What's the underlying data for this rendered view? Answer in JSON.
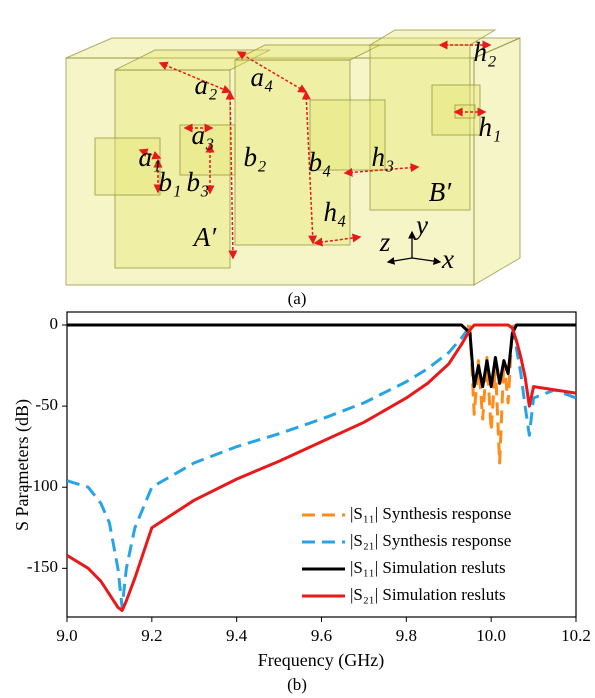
{
  "figure": {
    "caption_a": "(a)",
    "caption_b": "(b)",
    "diagram": {
      "labels": [
        "a₁",
        "a₂",
        "a₃",
        "a₄",
        "b₁",
        "b₂",
        "b₃",
        "b₄",
        "h₁",
        "h₂",
        "h₃",
        "h₄",
        "A′",
        "B′",
        "z",
        "y",
        "x"
      ]
    }
  },
  "chart_data": {
    "type": "line",
    "x_label": "Frequency (GHz)",
    "y_label": "S Parameters (dB)",
    "x": [
      9.0,
      9.05,
      9.08,
      9.1,
      9.12,
      9.13,
      9.14,
      9.16,
      9.2,
      9.3,
      9.4,
      9.5,
      9.6,
      9.7,
      9.8,
      9.85,
      9.9,
      9.93,
      9.95,
      9.96,
      9.97,
      9.98,
      9.99,
      10.0,
      10.01,
      10.02,
      10.03,
      10.04,
      10.05,
      10.06,
      10.07,
      10.08,
      10.09,
      10.1,
      10.15,
      10.2
    ],
    "series": [
      {
        "name": "|S₁₁| Synthesis response",
        "color": "#ff8c1a",
        "dashed": true,
        "values": [
          0,
          0,
          0,
          0,
          0,
          0,
          0,
          0,
          0,
          0,
          0,
          0,
          0,
          0,
          0,
          0,
          0,
          0,
          -1,
          -55,
          -22,
          -58,
          -20,
          -65,
          -25,
          -85,
          -22,
          -48,
          -1,
          0,
          0,
          0,
          0,
          0,
          0,
          0
        ]
      },
      {
        "name": "|S₂₁| Synthesis response",
        "color": "#29a3e8",
        "dashed": true,
        "values": [
          -96,
          -100,
          -110,
          -122,
          -150,
          -174,
          -150,
          -125,
          -100,
          -85,
          -75,
          -67,
          -58,
          -48,
          -35,
          -27,
          -17,
          -8,
          -1,
          0,
          0,
          0,
          0,
          0,
          0,
          0,
          0,
          0,
          0,
          -15,
          -30,
          -50,
          -68,
          -45,
          -40,
          -45
        ]
      },
      {
        "name": "|S₁₁| Simulation resluts",
        "color": "#000000",
        "dashed": false,
        "values": [
          0,
          0,
          0,
          0,
          0,
          0,
          0,
          0,
          0,
          0,
          0,
          0,
          0,
          0,
          0,
          0,
          0,
          0,
          -5,
          -38,
          -25,
          -38,
          -22,
          -38,
          -20,
          -36,
          -22,
          -30,
          -5,
          0,
          0,
          0,
          0,
          0,
          0,
          0
        ]
      },
      {
        "name": "|S₂₁| Simulation resluts",
        "color": "#e8191b",
        "dashed": false,
        "values": [
          -142,
          -150,
          -158,
          -166,
          -174,
          -176,
          -170,
          -156,
          -125,
          -108,
          -95,
          -84,
          -72,
          -60,
          -45,
          -36,
          -24,
          -12,
          -3,
          0,
          0,
          0,
          0,
          0,
          0,
          0,
          0,
          0,
          -2,
          -10,
          -20,
          -32,
          -50,
          -38,
          -40,
          -42
        ]
      }
    ],
    "xlim": [
      9.0,
      10.2
    ],
    "ylim": [
      -180,
      8
    ],
    "xticks": [
      {
        "value": 9.0,
        "label": "9.0"
      },
      9.2,
      9.4,
      9.6,
      9.8,
      {
        "value": 10.0,
        "label": "10.0"
      },
      10.2
    ],
    "yticks": [
      0,
      -50,
      -100,
      -150
    ],
    "legend": "lower-right",
    "grid": false
  }
}
